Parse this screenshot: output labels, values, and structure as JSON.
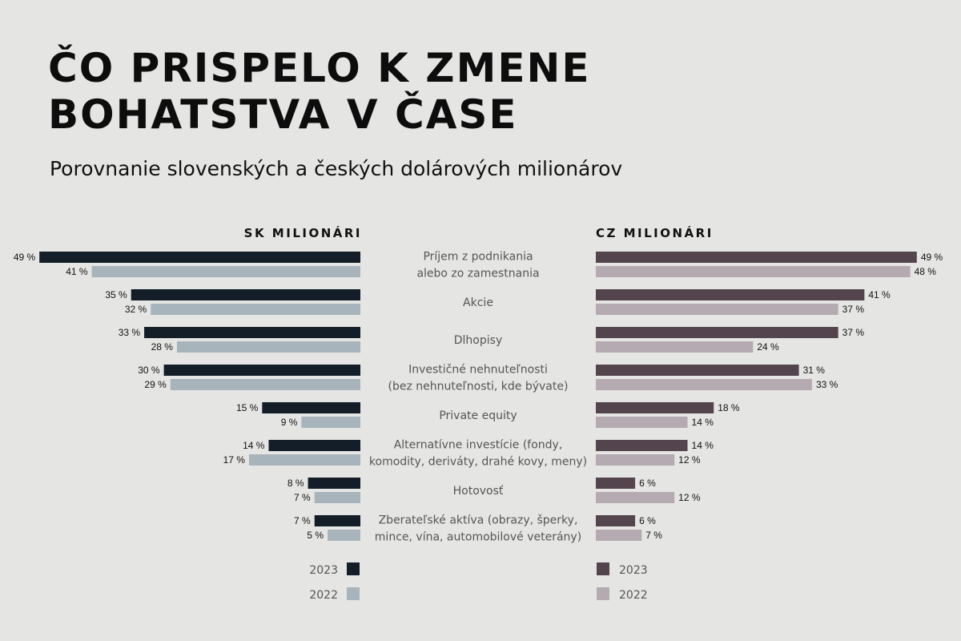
{
  "title_line1": "ČO PRISPELO K ZMENE",
  "title_line2": "BOHATSTVA V ČASE",
  "subtitle": "Porovnanie slovenských a českých dolárových milionárov",
  "chart_data": {
    "type": "bar",
    "orientation": "horizontal-butterfly",
    "unit": "%",
    "categories": [
      [
        "Príjem z podnikania",
        "alebo zo zamestnania"
      ],
      [
        "Akcie"
      ],
      [
        "Dlhopisy"
      ],
      [
        "Investičné nehnuteľnosti",
        "(bez nehnuteľnosti, kde bývate)"
      ],
      [
        "Private equity"
      ],
      [
        "Alternatívne investície (fondy,",
        "komodity, deriváty, drahé kovy, meny)"
      ],
      [
        "Hotovosť"
      ],
      [
        "Zberateľské aktíva (obrazy, šperky,",
        "mince, vína, automobilové veterány)"
      ]
    ],
    "panels": [
      {
        "title": "SK MILIONÁRI",
        "side": "left",
        "series": [
          {
            "name": "2023",
            "color": "#131e28",
            "values": [
              49,
              35,
              33,
              30,
              15,
              14,
              8,
              7
            ]
          },
          {
            "name": "2022",
            "color": "#a8b4bc",
            "values": [
              41,
              32,
              28,
              29,
              9,
              17,
              7,
              5
            ]
          }
        ]
      },
      {
        "title": "CZ MILIONÁRI",
        "side": "right",
        "series": [
          {
            "name": "2023",
            "color": "#54444e",
            "values": [
              49,
              41,
              37,
              31,
              18,
              14,
              6,
              6
            ]
          },
          {
            "name": "2022",
            "color": "#b5aab1",
            "values": [
              48,
              37,
              24,
              33,
              14,
              12,
              12,
              7
            ]
          }
        ]
      }
    ],
    "legend_placement": "bottom",
    "grid": false
  }
}
